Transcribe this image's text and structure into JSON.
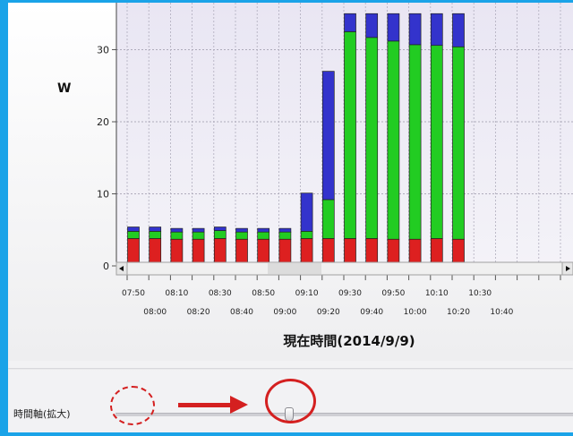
{
  "chart_data": {
    "type": "bar",
    "stacked": true,
    "ylabel": "W",
    "xlabel": "現在時間(2014/9/9)",
    "yticks": [
      0,
      10,
      20,
      30
    ],
    "ylim": [
      0,
      35
    ],
    "tick_labels_upper": [
      "07:50",
      "08:10",
      "08:30",
      "08:50",
      "09:10",
      "09:30",
      "09:50",
      "10:10",
      "10:30"
    ],
    "tick_labels_lower": [
      "08:00",
      "08:20",
      "08:40",
      "09:00",
      "09:20",
      "09:40",
      "10:00",
      "10:20",
      "10:40"
    ],
    "categories": [
      "07:50",
      "08:00",
      "08:10",
      "08:20",
      "08:30",
      "08:40",
      "08:50",
      "09:00",
      "09:10",
      "09:20",
      "09:30",
      "09:40",
      "09:50",
      "10:00",
      "10:10",
      "10:20"
    ],
    "series": [
      {
        "color": "#dd2020",
        "values": [
          3.8,
          3.8,
          3.7,
          3.7,
          3.8,
          3.7,
          3.7,
          3.7,
          3.8,
          3.8,
          3.8,
          3.8,
          3.7,
          3.7,
          3.8,
          3.7
        ]
      },
      {
        "color": "#22cc22",
        "values": [
          1.0,
          1.0,
          1.0,
          1.0,
          1.1,
          1.0,
          1.0,
          1.0,
          1.0,
          5.4,
          28.7,
          27.9,
          27.5,
          27.0,
          26.8,
          26.7
        ]
      },
      {
        "color": "#3333cc",
        "values": [
          0.6,
          0.6,
          0.5,
          0.5,
          0.5,
          0.5,
          0.5,
          0.5,
          5.3,
          17.8,
          2.5,
          3.3,
          3.8,
          4.3,
          4.4,
          4.6
        ]
      }
    ],
    "grid": true
  },
  "slider": {
    "label": "時間軸(拡大)",
    "value": 0.38
  }
}
